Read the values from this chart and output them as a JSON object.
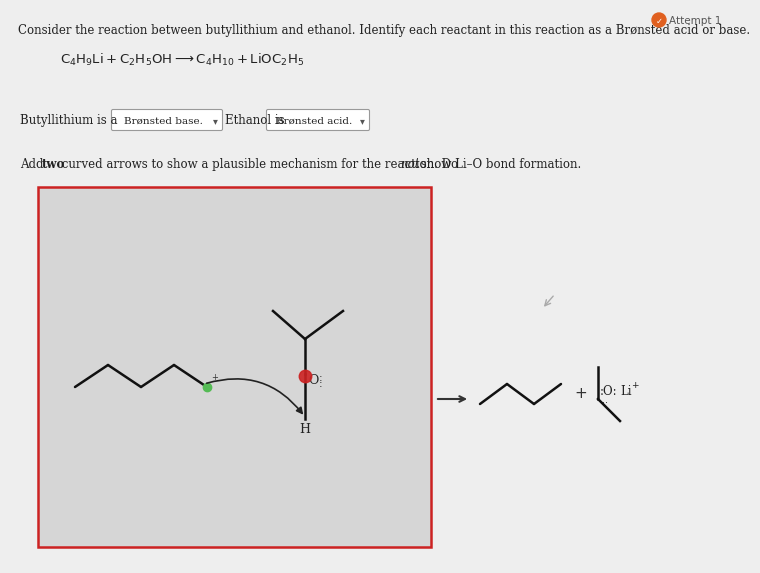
{
  "page_bg": "#eeeeee",
  "title_text1": "Consider the reaction between butyllithium and ethanol. Identify each reactant in this reaction as a Brønsted acid or base.",
  "eq_line": "C₄H₉Li + C₂H₅OH → C₄H₁₀ + LiOC₂H₅",
  "dropdown1_pre": "Butyllithium is a",
  "dropdown1_val": "Brønsted base.",
  "dropdown2_pre": "Ethanol is",
  "dropdown2_val": "Brønsted acid.",
  "inst_part1": "Add ",
  "inst_bold": "two",
  "inst_part2": " curved arrows to show a plausible mechanism for the reaction. Do ",
  "inst_italic": "not",
  "inst_part3": " show Li–O bond formation.",
  "attempt_text": "Attempt 1",
  "panel_bg": "#d6d6d6",
  "panel_border": "#cc2222",
  "green_color": "#55bb55",
  "red_color": "#cc2222",
  "lw_mol": 1.8,
  "lw_panel": 1.8,
  "font_size_title": 8.5,
  "font_size_eq": 9.5,
  "font_size_drop": 8.5,
  "font_size_inst": 8.5,
  "font_size_mol": 9.0
}
